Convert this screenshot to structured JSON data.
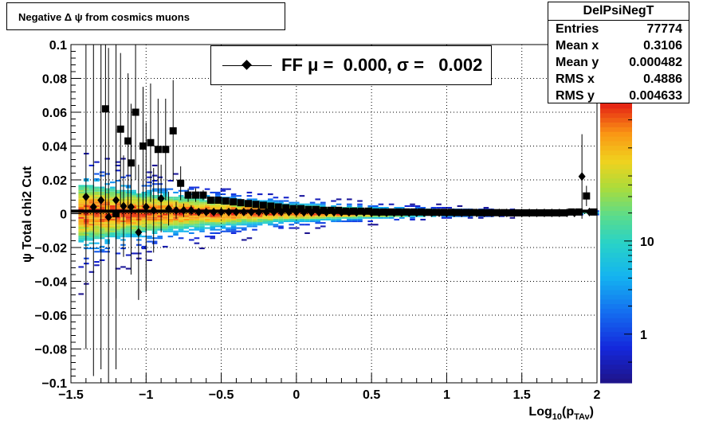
{
  "title": "Negative Δ ψ from cosmics muons",
  "stats": {
    "name": "DelPsiNegT",
    "rows": [
      {
        "label": "Entries",
        "value": "77774"
      },
      {
        "label": "Mean x",
        "value": "0.3106"
      },
      {
        "label": "Mean y",
        "value": "0.000482"
      },
      {
        "label": "RMS x",
        "value": "0.4886"
      },
      {
        "label": "RMS y",
        "value": "0.004633"
      }
    ]
  },
  "legend": {
    "text": "FF μ =  0.000, σ =   0.002"
  },
  "chart_data": {
    "type": "heatmap",
    "xlabel": "Log10(pTAv)",
    "ylabel": "ψ  Total chi2 Cut",
    "xlim": [
      -1.5,
      2.0
    ],
    "ylim": [
      -0.1,
      0.1
    ],
    "x_ticks": [
      -1.5,
      -1,
      -0.5,
      0,
      0.5,
      1,
      1.5,
      2
    ],
    "x_tick_labels": [
      "−1.5",
      "−1",
      "−0.5",
      "0",
      "0.5",
      "1",
      "1.5",
      "2"
    ],
    "y_ticks": [
      -0.1,
      -0.08,
      -0.06,
      -0.04,
      -0.02,
      0,
      0.02,
      0.04,
      0.06,
      0.08,
      0.1
    ],
    "y_tick_labels": [
      "−0.1",
      "−0.08",
      "−0.06",
      "−0.04",
      "−0.02",
      "0",
      "0.02",
      "0.04",
      "0.06",
      "0.08",
      "0.1"
    ],
    "grid": true,
    "colorbar": {
      "scale": "log",
      "range": [
        0.3,
        300
      ],
      "tick_values": [
        1,
        10
      ],
      "tick_labels": [
        "1",
        "10"
      ]
    },
    "band_model": {
      "center_y": 0.0005,
      "width_y_at_x": [
        [
          -1.4,
          0.03
        ],
        [
          -1.0,
          0.02
        ],
        [
          -0.5,
          0.013
        ],
        [
          0.0,
          0.008
        ],
        [
          0.5,
          0.005
        ],
        [
          1.0,
          0.003
        ],
        [
          1.5,
          0.002
        ],
        [
          1.9,
          0.0015
        ]
      ]
    },
    "series": [
      {
        "marker": "square",
        "x": [
          -1.27,
          -1.2,
          -1.17,
          -1.12,
          -1.1,
          -1.07,
          -1.02,
          -0.97,
          -0.92,
          -0.87,
          -0.82,
          -0.77,
          -0.72,
          -0.67,
          -0.62,
          -0.57,
          -0.52,
          -0.47,
          -0.42,
          -0.37,
          -0.32,
          -0.27,
          -0.22,
          -0.17,
          -0.12,
          -0.07,
          -0.02,
          0.03,
          0.08,
          0.13,
          0.18,
          0.23,
          0.28,
          0.33,
          0.38,
          0.43,
          0.48,
          0.53,
          0.58,
          0.63,
          0.68,
          0.73,
          0.78,
          0.83,
          0.88,
          0.93,
          0.98,
          1.03,
          1.08,
          1.13,
          1.18,
          1.23,
          1.28,
          1.33,
          1.38,
          1.43,
          1.48,
          1.53,
          1.58,
          1.63,
          1.68,
          1.73,
          1.78,
          1.83,
          1.88,
          1.93,
          1.98
        ],
        "y": [
          0.062,
          0.0,
          0.05,
          0.043,
          0.03,
          0.06,
          0.04,
          0.042,
          0.038,
          0.038,
          0.049,
          0.018,
          0.011,
          0.011,
          0.011,
          0.008,
          0.008,
          0.0075,
          0.007,
          0.0065,
          0.006,
          0.0055,
          0.005,
          0.0045,
          0.004,
          0.0035,
          0.003,
          0.003,
          0.0025,
          0.0025,
          0.002,
          0.002,
          0.002,
          0.0015,
          0.0015,
          0.0015,
          0.0015,
          0.001,
          0.001,
          0.001,
          0.001,
          0.001,
          0.001,
          0.001,
          0.0008,
          0.0008,
          0.0008,
          0.0008,
          0.0007,
          0.0007,
          0.0007,
          0.0006,
          0.0006,
          0.0006,
          0.0006,
          0.0005,
          0.0005,
          0.0005,
          0.0005,
          0.0005,
          0.0005,
          0.0005,
          0.0005,
          0.001,
          0.001,
          0.0105,
          0.001
        ],
        "err": [
          0.06,
          0.05,
          0.045,
          0.04,
          0.035,
          0.04,
          0.035,
          0.035,
          0.03,
          0.03,
          0.03,
          0.01,
          0.004,
          0.004,
          0.003,
          0.002,
          0.002,
          0.002,
          0.0015,
          0.0015,
          0.001,
          0.001,
          0.001,
          0.001,
          0.0008,
          0.0008,
          0.0008,
          0.0006,
          0.0006,
          0.0006,
          0.0005,
          0.0005,
          0.0005,
          0.0005,
          0.0004,
          0.0004,
          0.0004,
          0.0004,
          0.0004,
          0.0004,
          0.0004,
          0.0004,
          0.0004,
          0.0004,
          0.0004,
          0.0004,
          0.0004,
          0.0004,
          0.0004,
          0.0004,
          0.0004,
          0.0004,
          0.0004,
          0.0004,
          0.0004,
          0.0004,
          0.0004,
          0.0004,
          0.0004,
          0.0004,
          0.0004,
          0.0004,
          0.0004,
          0.0006,
          0.0008,
          0.006,
          0.001
        ]
      },
      {
        "marker": "diamond",
        "x": [
          -1.4,
          -1.35,
          -1.3,
          -1.25,
          -1.2,
          -1.15,
          -1.1,
          -1.05,
          -1.0,
          -0.95,
          -0.9,
          -0.85,
          -0.8,
          -0.75,
          -0.7,
          -0.65,
          -0.6,
          -0.55,
          -0.5,
          -0.45,
          -0.4,
          -0.35,
          -0.3,
          -0.25,
          -0.2,
          -0.15,
          -0.1,
          -0.05,
          0.0,
          0.05,
          0.1,
          0.15,
          0.2,
          0.25,
          0.3,
          0.35,
          0.4,
          0.45,
          0.5,
          0.55,
          0.6,
          0.65,
          0.7,
          0.75,
          0.8,
          0.85,
          0.9,
          0.95,
          1.0,
          1.05,
          1.1,
          1.15,
          1.2,
          1.25,
          1.3,
          1.35,
          1.4,
          1.45,
          1.5,
          1.55,
          1.6,
          1.65,
          1.7,
          1.75,
          1.8,
          1.85,
          1.9,
          1.95
        ],
        "y": [
          0.01,
          0.004,
          0.008,
          -0.002,
          0.008,
          0.0045,
          0.004,
          -0.011,
          0.004,
          0.002,
          0.009,
          0.003,
          0.002,
          0.002,
          0.002,
          0.001,
          0.001,
          0.001,
          0.001,
          0.001,
          0.001,
          0.001,
          0.001,
          0.001,
          0.001,
          0.001,
          0.001,
          0.001,
          0.001,
          0.0008,
          0.0008,
          0.0008,
          0.0008,
          0.0008,
          0.0008,
          0.0008,
          0.0008,
          0.0008,
          0.0006,
          0.0006,
          0.0006,
          0.0006,
          0.0006,
          0.0006,
          0.0006,
          0.0006,
          0.0006,
          0.0006,
          0.0005,
          0.0005,
          0.0005,
          0.0005,
          0.0005,
          0.0005,
          0.0005,
          0.0005,
          0.0005,
          0.0005,
          0.0005,
          0.0005,
          0.0005,
          0.0005,
          0.0005,
          0.0005,
          0.0005,
          0.0005,
          0.022,
          0.001
        ],
        "err": [
          0.09,
          0.1,
          0.1,
          0.1,
          0.1,
          0.03,
          0.04,
          0.04,
          0.05,
          0.025,
          0.02,
          0.01,
          0.005,
          0.004,
          0.003,
          0.002,
          0.002,
          0.0015,
          0.0015,
          0.001,
          0.001,
          0.001,
          0.001,
          0.0008,
          0.0008,
          0.0008,
          0.0008,
          0.0006,
          0.0006,
          0.0006,
          0.0005,
          0.0005,
          0.0005,
          0.0005,
          0.0004,
          0.0004,
          0.0004,
          0.0004,
          0.0004,
          0.0004,
          0.0004,
          0.0004,
          0.0004,
          0.0004,
          0.0004,
          0.0004,
          0.0004,
          0.0004,
          0.0004,
          0.0004,
          0.0004,
          0.0004,
          0.0004,
          0.0004,
          0.0004,
          0.0004,
          0.0004,
          0.0004,
          0.0004,
          0.0004,
          0.0004,
          0.0004,
          0.0004,
          0.0004,
          0.0004,
          0.0004,
          0.025,
          0.002
        ]
      }
    ],
    "fit_line": {
      "y": 0.0015,
      "x_range": [
        -1.5,
        2.0
      ]
    }
  }
}
